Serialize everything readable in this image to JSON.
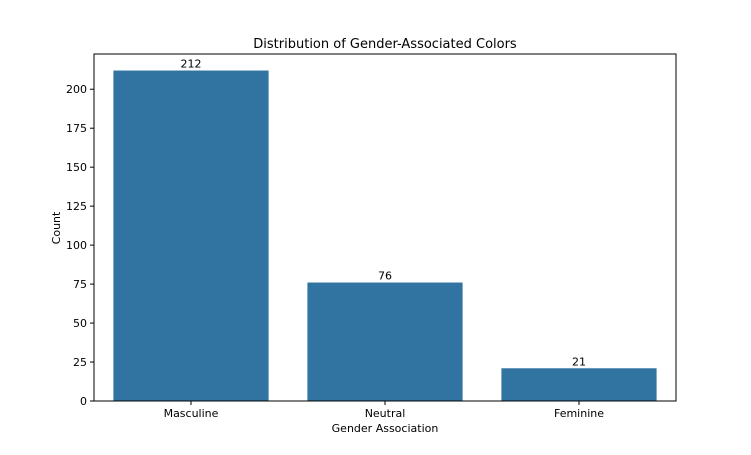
{
  "chart_data": {
    "type": "bar",
    "title": "Distribution of Gender-Associated Colors",
    "xlabel": "Gender Association",
    "ylabel": "Count",
    "categories": [
      "Masculine",
      "Neutral",
      "Feminine"
    ],
    "values": [
      212,
      76,
      21
    ],
    "data_labels": [
      "212",
      "76",
      "21"
    ],
    "ylim": [
      0,
      222.6
    ],
    "yticks": [
      0,
      25,
      50,
      75,
      100,
      125,
      150,
      175,
      200
    ],
    "ytick_labels": [
      "0",
      "25",
      "50",
      "75",
      "100",
      "125",
      "150",
      "175",
      "200"
    ],
    "bar_color": "#3274a1",
    "grid": false,
    "legend": "none"
  }
}
